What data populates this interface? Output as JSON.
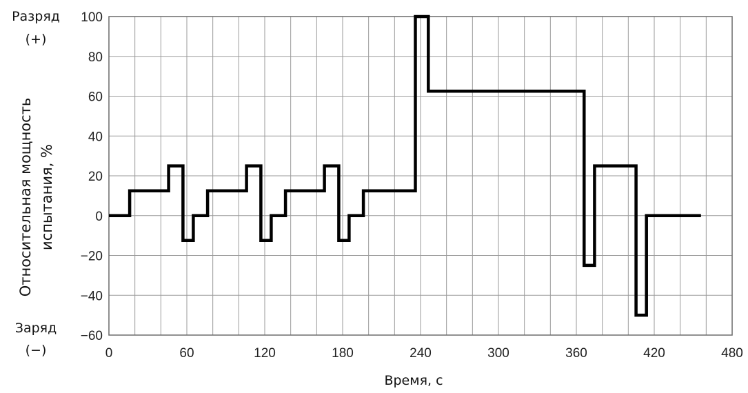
{
  "chart_data": {
    "type": "line",
    "xlabel": "Время, с",
    "ylabel_line1": "Относительная мощность",
    "ylabel_line2": "испытания, %",
    "discharge_label": "Разряд",
    "discharge_sign": "(+)",
    "charge_label": "Заряд",
    "charge_sign": "(−)",
    "xlim": [
      0,
      480
    ],
    "ylim": [
      -60,
      100
    ],
    "xticks": [
      0,
      60,
      120,
      180,
      240,
      300,
      360,
      420,
      480
    ],
    "yticks": [
      -60,
      -40,
      -20,
      0,
      20,
      40,
      60,
      80,
      100
    ],
    "ytick_labels": [
      "−60",
      "−40",
      "−20",
      "0",
      "20",
      "40",
      "60",
      "80",
      "100"
    ],
    "xgrid_step": 20,
    "ygrid_step": 20,
    "grid": true,
    "series": [
      {
        "step": true,
        "x": [
          0,
          16,
          16,
          46,
          46,
          57,
          57,
          65,
          65,
          76,
          76,
          106,
          106,
          117,
          117,
          125,
          125,
          136,
          136,
          166,
          166,
          177,
          177,
          185,
          185,
          196,
          196,
          236,
          236,
          246,
          246,
          366,
          366,
          374,
          374,
          406,
          406,
          414,
          414,
          456
        ],
        "y": [
          0,
          0,
          12.5,
          12.5,
          25,
          25,
          -12.5,
          -12.5,
          0,
          0,
          12.5,
          12.5,
          25,
          25,
          -12.5,
          -12.5,
          0,
          0,
          12.5,
          12.5,
          25,
          25,
          -12.5,
          -12.5,
          0,
          0,
          12.5,
          12.5,
          100,
          100,
          62.5,
          62.5,
          -25,
          -25,
          25,
          25,
          -50,
          -50,
          0,
          0
        ]
      }
    ]
  }
}
